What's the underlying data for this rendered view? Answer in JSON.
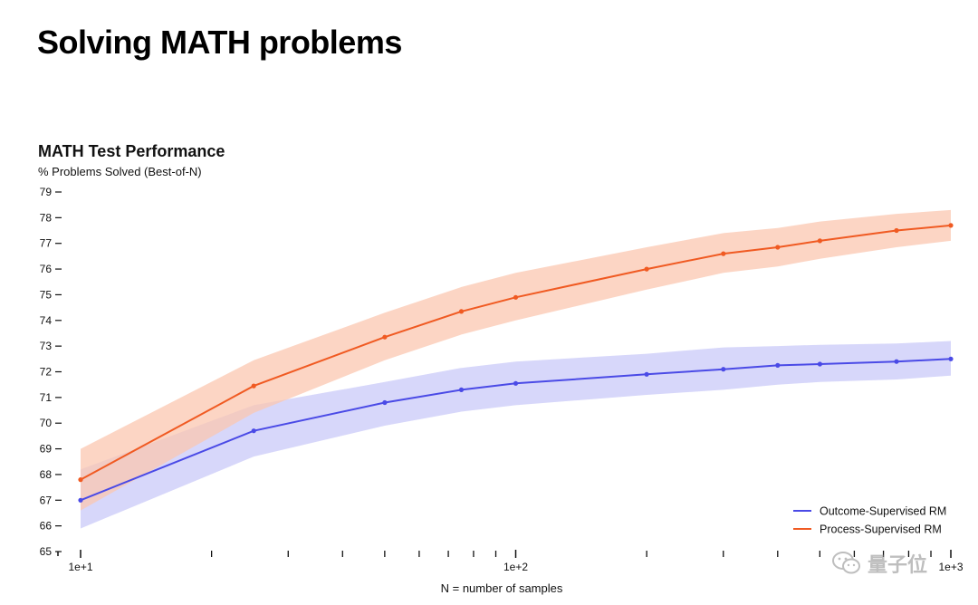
{
  "header": {
    "title": "Solving MATH problems"
  },
  "chart_data": {
    "type": "line",
    "title": "MATH Test Performance",
    "ylabel": "% Problems Solved (Best-of-N)",
    "xlabel": "N = number of samples",
    "xscale": "log",
    "xlim": [
      10,
      1000
    ],
    "ylim": [
      65,
      79
    ],
    "yticks": [
      65,
      66,
      67,
      68,
      69,
      70,
      71,
      72,
      73,
      74,
      75,
      76,
      77,
      78,
      79
    ],
    "ytick_labels": [
      "65",
      "66",
      "67",
      "68",
      "69",
      "70",
      "71",
      "72",
      "73",
      "74",
      "75",
      "76",
      "77",
      "78",
      "79"
    ],
    "xtick_major": [
      10,
      100,
      1000
    ],
    "xtick_labels": [
      "1e+1",
      "1e+2",
      "1e+3"
    ],
    "xtick_minor": [
      20,
      30,
      40,
      50,
      60,
      70,
      80,
      90,
      200,
      300,
      400,
      500,
      600,
      700,
      800,
      900
    ],
    "legend_position": "bottom-right",
    "series": [
      {
        "name": "Outcome-Supervised RM",
        "color": "#4a4ae6",
        "band_color": "#c9caf8",
        "x": [
          10,
          25,
          50,
          75,
          100,
          200,
          300,
          400,
          500,
          750,
          1000
        ],
        "values": [
          67.0,
          69.7,
          70.8,
          71.3,
          71.55,
          71.9,
          72.1,
          72.25,
          72.3,
          72.4,
          72.5
        ],
        "lower": [
          65.9,
          68.7,
          69.9,
          70.45,
          70.7,
          71.1,
          71.3,
          71.5,
          71.6,
          71.7,
          71.85
        ],
        "upper": [
          68.2,
          70.7,
          71.6,
          72.15,
          72.4,
          72.7,
          72.95,
          73.0,
          73.05,
          73.1,
          73.2
        ]
      },
      {
        "name": "Process-Supervised RM",
        "color": "#f05a22",
        "band_color": "#fbc7b0",
        "x": [
          10,
          25,
          50,
          75,
          100,
          200,
          300,
          400,
          500,
          750,
          1000
        ],
        "values": [
          67.8,
          71.45,
          73.35,
          74.35,
          74.9,
          76.0,
          76.6,
          76.85,
          77.1,
          77.5,
          77.7
        ],
        "lower": [
          66.6,
          70.4,
          72.45,
          73.45,
          74.0,
          75.2,
          75.85,
          76.1,
          76.4,
          76.85,
          77.1
        ],
        "upper": [
          69.0,
          72.45,
          74.3,
          75.3,
          75.85,
          76.85,
          77.4,
          77.6,
          77.85,
          78.15,
          78.3
        ]
      }
    ]
  },
  "watermark": {
    "text": "量子位"
  }
}
